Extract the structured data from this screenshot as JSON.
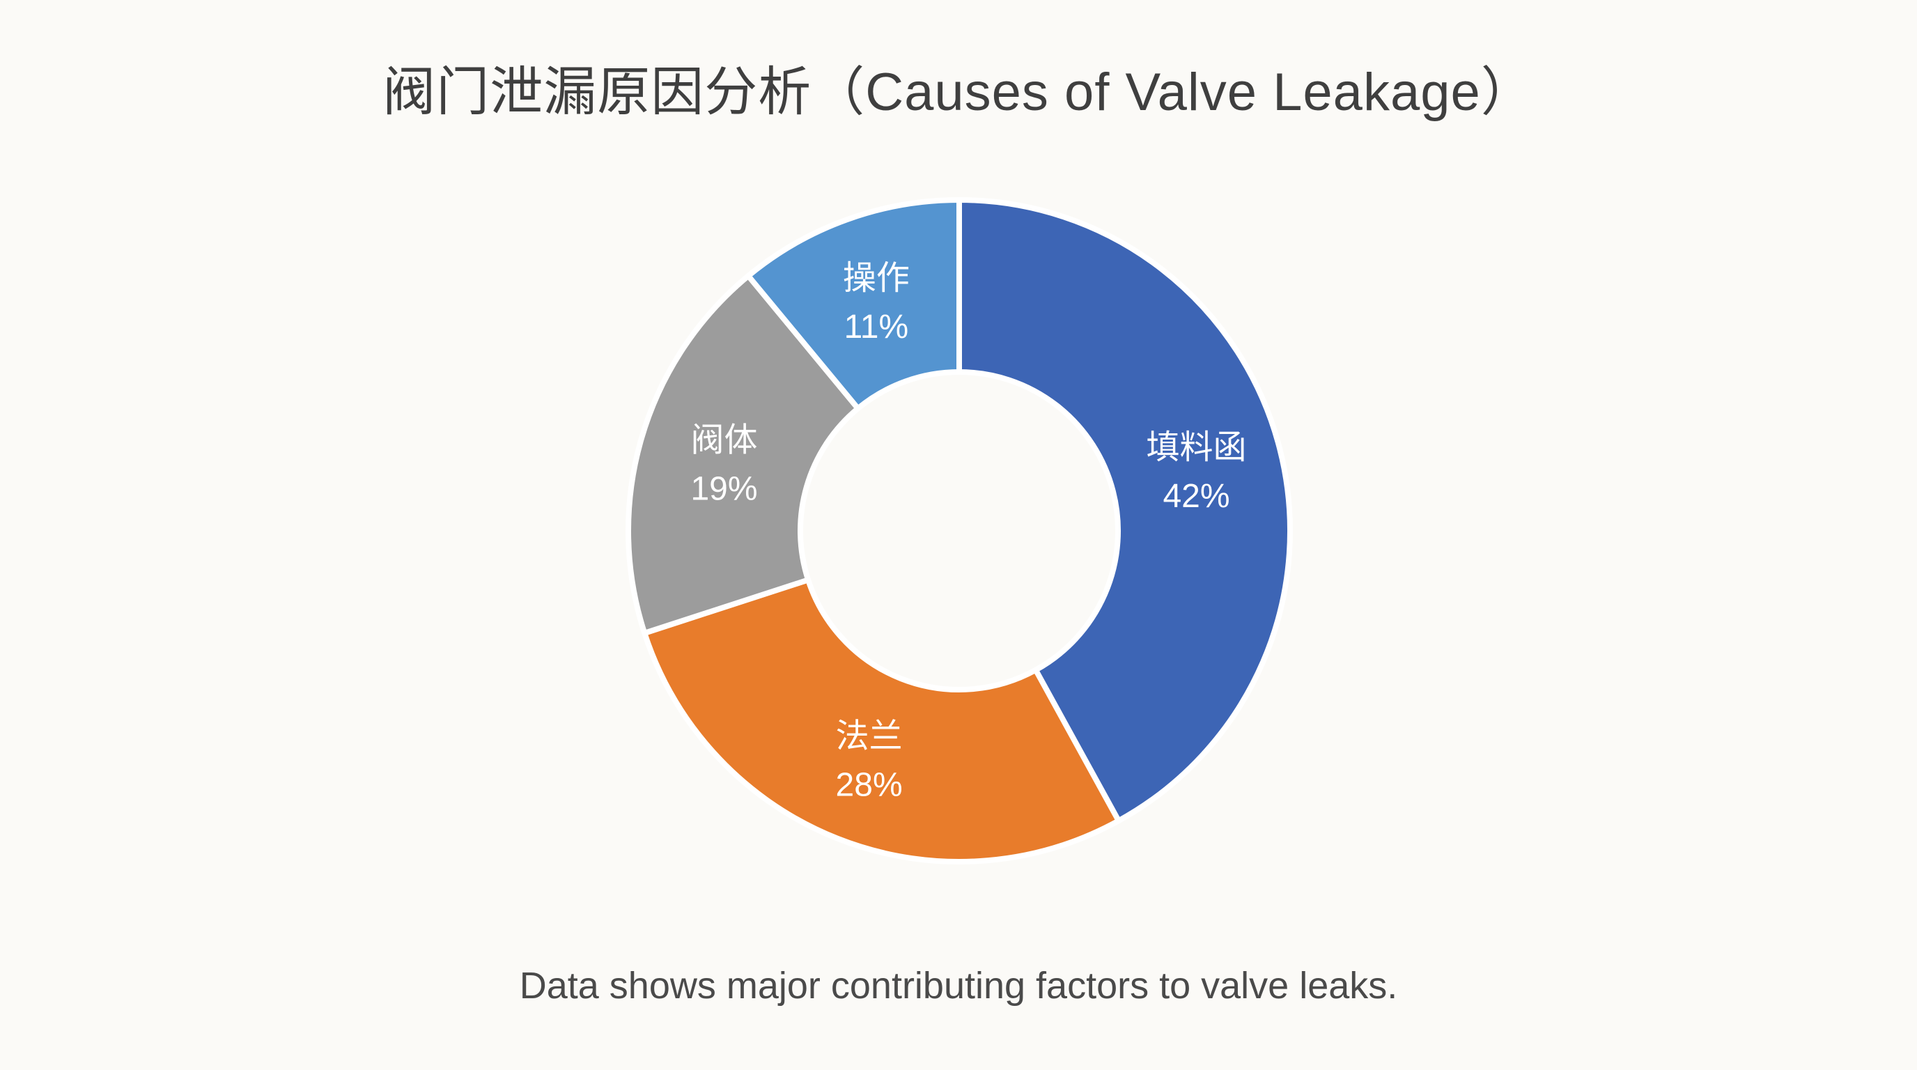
{
  "header": {
    "title": "阀门泄漏原因分析（Causes of Valve Leakage）"
  },
  "caption": {
    "text": "Data shows major contributing factors to valve leaks."
  },
  "chart_data": {
    "type": "pie",
    "subtype": "donut",
    "title": "阀门泄漏原因分析（Causes of Valve Leakage）",
    "categories": [
      "填料函",
      "法兰",
      "阀体",
      "操作"
    ],
    "values": [
      42,
      28,
      19,
      11
    ],
    "unit": "%",
    "colors": [
      "#3d65b5",
      "#e87c2b",
      "#9c9c9c",
      "#5494d0"
    ],
    "start_angle_deg": 0,
    "direction": "clockwise",
    "inner_radius_ratio": 0.48,
    "gap_color": "#ffffff",
    "label_color": "#ffffff",
    "label_position": "inside",
    "legend": "none",
    "background": "#fbfaf7",
    "title_color": "#3f3f3f",
    "caption_color": "#4a4a4a"
  }
}
